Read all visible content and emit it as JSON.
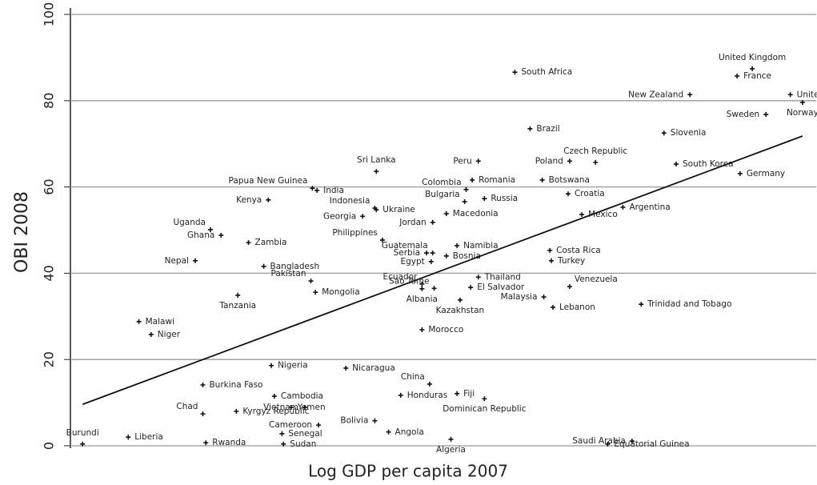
{
  "chart_data": {
    "type": "scatter",
    "x_label": "Log GDP per capita 2007",
    "y_label": "OBI 2008",
    "xlim": [
      5.8,
      10.7
    ],
    "ylim": [
      0,
      100
    ],
    "yticks": [
      0,
      20,
      40,
      60,
      80,
      100
    ],
    "grid": true,
    "color": "#111111",
    "series": [
      {
        "labels": [
          "South Africa",
          "United Kingdom",
          "France",
          "New Zealand",
          "United States",
          "Norway",
          "Sweden",
          "Brazil",
          "Slovenia",
          "Peru",
          "Poland",
          "Czech Republic",
          "South Korea",
          "Germany",
          "Sri Lanka",
          "Papua New Guinea",
          "India",
          "Colombia",
          "Romania",
          "Botswana",
          "Bulgaria",
          "Russia",
          "Croatia",
          "Kenya",
          "Indonesia",
          "Ukraine",
          "Argentina",
          "Mexico",
          "Macedonia",
          "Georgia",
          "Jordan",
          "Uganda",
          "Ghana",
          "Philippines",
          "Zambia",
          "Namibia",
          "Guatemala",
          "Serbia",
          "Costa Rica",
          "Egypt",
          "Bosnia",
          "Turkey",
          "Nepal",
          "Bangladesh",
          "Thailand",
          "Ecuador",
          "Pakistan",
          "Sao Tome",
          "El Salvador",
          "Mongolia",
          "Venezuela",
          "Malaysia",
          "Albania",
          "Kazakhstan",
          "Tanzania",
          "Lebanon",
          "Trinidad and Tobago",
          "Malawi",
          "Niger",
          "Morocco",
          "Nigeria",
          "Nicaragua",
          "Burkina Faso",
          "Honduras",
          "China",
          "Fiji",
          "Dominican Republic",
          "Cambodia",
          "Yemen",
          "Vietnam",
          "Kyrgyz Republic",
          "Chad",
          "Cameroon",
          "Bolivia",
          "Senegal",
          "Liberia",
          "Burundi",
          "Rwanda",
          "Sudan",
          "Angola",
          "Algeria",
          "Equatorial Guinea",
          "Saudi Arabia"
        ],
        "x": [
          8.72,
          10.28,
          10.18,
          9.87,
          10.53,
          10.61,
          10.37,
          8.82,
          9.7,
          8.48,
          9.08,
          9.25,
          9.78,
          10.2,
          7.81,
          7.39,
          7.42,
          8.4,
          8.44,
          8.9,
          8.39,
          8.52,
          9.07,
          7.1,
          7.8,
          7.81,
          9.43,
          9.16,
          8.27,
          7.72,
          8.18,
          6.72,
          6.79,
          7.85,
          6.97,
          8.34,
          8.18,
          8.14,
          8.95,
          8.17,
          8.27,
          8.96,
          6.62,
          7.07,
          8.48,
          8.11,
          7.38,
          8.19,
          8.43,
          7.41,
          9.08,
          8.91,
          8.11,
          8.36,
          6.9,
          8.97,
          9.55,
          6.25,
          6.33,
          8.11,
          7.12,
          7.61,
          6.67,
          7.97,
          8.16,
          8.34,
          8.52,
          7.14,
          7.25,
          7.34,
          6.89,
          6.67,
          7.43,
          7.8,
          7.19,
          6.18,
          5.88,
          6.69,
          7.2,
          7.89,
          8.3,
          9.33,
          9.49
        ],
        "values": [
          86.6,
          87.4,
          85.7,
          81.4,
          81.4,
          79.6,
          76.8,
          73.5,
          72.5,
          66.0,
          66.0,
          65.7,
          65.3,
          63.1,
          63.6,
          59.7,
          59.2,
          59.4,
          61.6,
          61.6,
          56.6,
          57.3,
          58.4,
          57.0,
          55.1,
          54.7,
          55.3,
          53.6,
          53.8,
          53.2,
          51.8,
          50.1,
          48.8,
          47.7,
          47.1,
          46.4,
          44.7,
          44.7,
          45.3,
          42.7,
          44.0,
          42.9,
          42.9,
          41.6,
          39.1,
          37.5,
          38.2,
          36.5,
          36.7,
          35.6,
          36.9,
          34.5,
          36.4,
          33.8,
          34.9,
          32.1,
          32.8,
          28.8,
          25.8,
          26.9,
          18.6,
          18.0,
          14.1,
          11.7,
          14.3,
          12.1,
          10.9,
          11.5,
          8.9,
          8.9,
          8.0,
          7.4,
          4.8,
          5.8,
          2.8,
          2.0,
          0.4,
          0.7,
          0.4,
          3.2,
          1.5,
          0.4,
          1.1
        ]
      }
    ],
    "fit_line": {
      "x": [
        5.88,
        10.61
      ],
      "y": [
        9.6,
        71.8
      ]
    }
  }
}
